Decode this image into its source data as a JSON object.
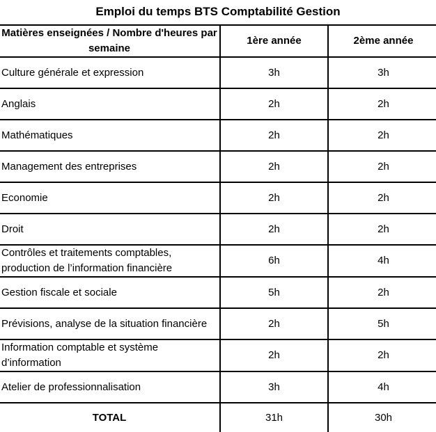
{
  "title": "Emploi du temps BTS Comptabilité Gestion",
  "table": {
    "headers": [
      "Matières enseignées / Nombre d'heures par semaine",
      "1ère année",
      "2ème année"
    ],
    "rows": [
      {
        "subject": "Culture générale et expression",
        "year1": "3h",
        "year2": "3h"
      },
      {
        "subject": "Anglais",
        "year1": "2h",
        "year2": "2h"
      },
      {
        "subject": "Mathématiques",
        "year1": "2h",
        "year2": "2h"
      },
      {
        "subject": "Management des entreprises",
        "year1": "2h",
        "year2": "2h"
      },
      {
        "subject": "Economie",
        "year1": "2h",
        "year2": "2h"
      },
      {
        "subject": "Droit",
        "year1": "2h",
        "year2": "2h"
      },
      {
        "subject": "Contrôles et traitements comptables, production de l’information financière",
        "year1": "6h",
        "year2": "4h"
      },
      {
        "subject": "Gestion fiscale et sociale",
        "year1": "5h",
        "year2": "2h"
      },
      {
        "subject": "Prévisions, analyse de la situation financière",
        "year1": "2h",
        "year2": "5h"
      },
      {
        "subject": "Information comptable et système d’information",
        "year1": "2h",
        "year2": "2h"
      },
      {
        "subject": "Atelier de professionnalisation",
        "year1": "3h",
        "year2": "4h"
      }
    ],
    "total": {
      "label": "TOTAL",
      "year1": "31h",
      "year2": "30h"
    }
  }
}
